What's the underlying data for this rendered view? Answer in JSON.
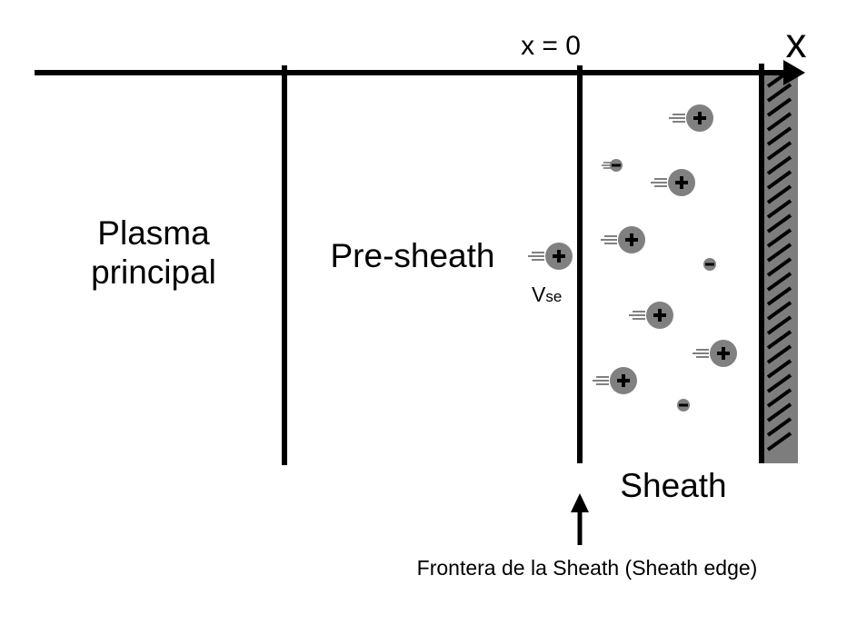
{
  "axis": {
    "label": "x",
    "origin_label": "x = 0"
  },
  "regions": {
    "plasma_line1": "Plasma",
    "plasma_line2": "principal",
    "presheath": "Pre-sheath",
    "sheath": "Sheath"
  },
  "velocity": {
    "symbol": "V",
    "subscript": "se"
  },
  "sheath_edge_label": "Frontera de la Sheath (Sheath edge)",
  "ion_sign": "+",
  "electron_sign": "−",
  "colors": {
    "line": "#000000",
    "particle": "#808080",
    "wall": "#7d7d7d"
  }
}
